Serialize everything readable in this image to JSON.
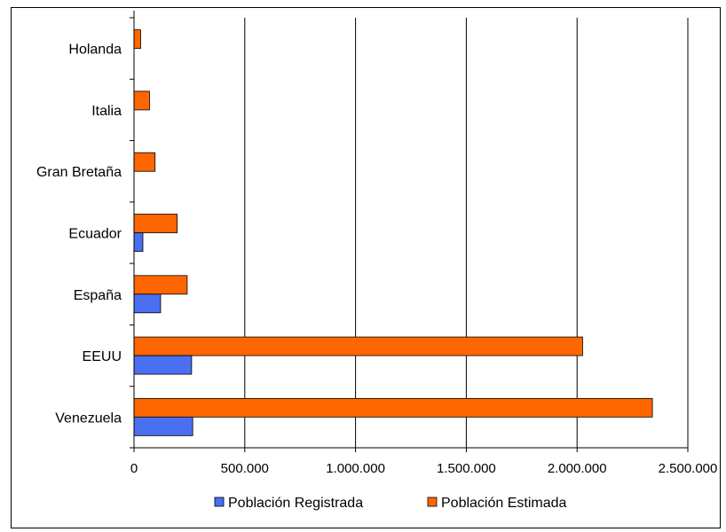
{
  "chart_data": {
    "type": "bar",
    "orientation": "horizontal",
    "categories": [
      "Holanda",
      "Italia",
      "Gran Bretaña",
      "Ecuador",
      "España",
      "EEUU",
      "Venezuela"
    ],
    "series": [
      {
        "name": "Población Registrada",
        "color": "#4a6ff0",
        "values": [
          0,
          0,
          0,
          40000,
          120000,
          260000,
          265000
        ]
      },
      {
        "name": "Población Estimada",
        "color": "#ff6600",
        "values": [
          30000,
          70000,
          95000,
          195000,
          240000,
          2025000,
          2340000
        ]
      }
    ],
    "xlim": [
      0,
      2500000
    ],
    "x_ticks": [
      0,
      500000,
      1000000,
      1500000,
      2000000,
      2500000
    ],
    "x_tick_labels": [
      "0",
      "500.000",
      "1.000.000",
      "1.500.000",
      "2.000.000",
      "2.500.000"
    ],
    "grid": "vertical",
    "legend_position": "bottom"
  }
}
